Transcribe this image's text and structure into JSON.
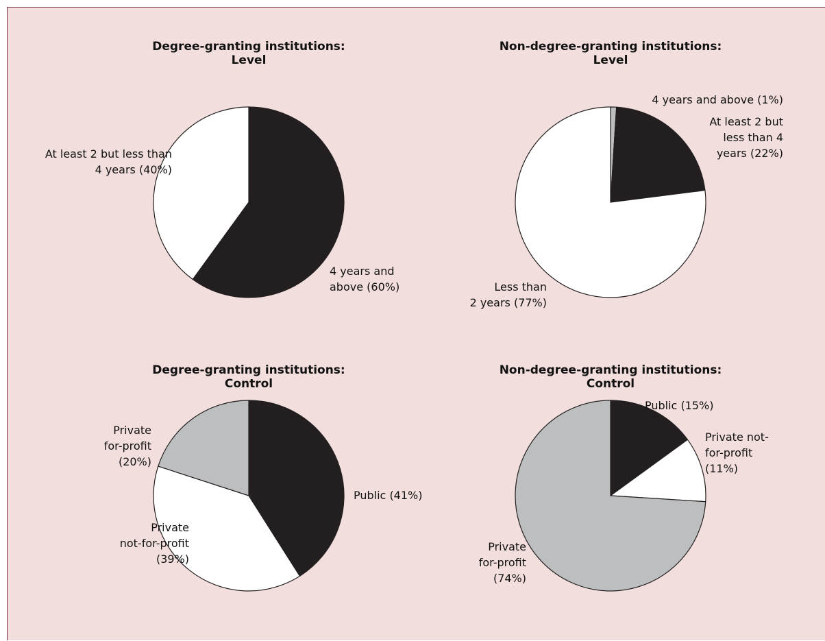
{
  "chart_data": [
    {
      "type": "pie",
      "title_lines": [
        "Degree-granting institutions:",
        "Level"
      ],
      "labels": [
        "4 years and above",
        "At least 2 but less than 4 years"
      ],
      "values": [
        60,
        40
      ],
      "colors": [
        "#231f20",
        "#ffffff"
      ],
      "annotations": [
        [
          "4 years and",
          "above (60%)"
        ],
        [
          "At least 2 but less than",
          "4 years (40%)"
        ]
      ]
    },
    {
      "type": "pie",
      "title_lines": [
        "Non-degree-granting institutions:",
        "Level"
      ],
      "labels": [
        "4 years and above",
        "At least 2 but less than 4 years",
        "Less than 2 years"
      ],
      "values": [
        1,
        22,
        77
      ],
      "colors": [
        "#bcbec0",
        "#231f20",
        "#ffffff"
      ],
      "annotations": [
        [
          "4 years and above (1%)"
        ],
        [
          "At least 2 but",
          "less than 4",
          "years (22%)"
        ],
        [
          "Less than",
          "2 years (77%)"
        ]
      ]
    },
    {
      "type": "pie",
      "title_lines": [
        "Degree-granting institutions:",
        "Control"
      ],
      "labels": [
        "Public",
        "Private not-for-profit",
        "Private for-profit"
      ],
      "values": [
        41,
        39,
        20
      ],
      "colors": [
        "#231f20",
        "#ffffff",
        "#bcbec0"
      ],
      "annotations": [
        [
          "Public (41%)"
        ],
        [
          "Private",
          "not-for-profit",
          "(39%)"
        ],
        [
          "Private",
          "for-profit",
          "(20%)"
        ]
      ]
    },
    {
      "type": "pie",
      "title_lines": [
        "Non-degree-granting institutions:",
        "Control"
      ],
      "labels": [
        "Public",
        "Private not-for-profit",
        "Private for-profit"
      ],
      "values": [
        15,
        11,
        74
      ],
      "colors": [
        "#231f20",
        "#ffffff",
        "#bcbec0"
      ],
      "annotations": [
        [
          "Public (15%)"
        ],
        [
          "Private not-",
          "for-profit",
          "(11%)"
        ],
        [
          "Private",
          "for-profit",
          "(74%)"
        ]
      ]
    }
  ]
}
